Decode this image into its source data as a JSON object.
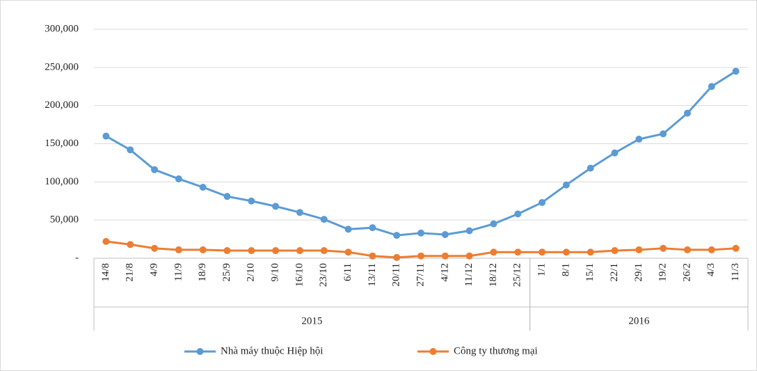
{
  "chart_data": {
    "type": "line",
    "categories": [
      "14/8",
      "21/8",
      "4/9",
      "11/9",
      "18/9",
      "25/9",
      "2/10",
      "9/10",
      "16/10",
      "23/10",
      "6/11",
      "13/11",
      "20/11",
      "27/11",
      "4/12",
      "11/12",
      "18/12",
      "25/12",
      "1/1",
      "8/1",
      "15/1",
      "22/1",
      "29/1",
      "19/2",
      "26/2",
      "4/3",
      "11/3"
    ],
    "x_groups": [
      {
        "label": "2015",
        "from": 0,
        "to": 17
      },
      {
        "label": "2016",
        "from": 18,
        "to": 26
      }
    ],
    "series": [
      {
        "name": "Nhà máy thuộc Hiệp hội",
        "color": "#5b9bd5",
        "values": [
          160000,
          142000,
          116000,
          104000,
          93000,
          81000,
          75000,
          68000,
          60000,
          51000,
          38000,
          40000,
          30000,
          33000,
          31000,
          36000,
          45000,
          58000,
          73000,
          96000,
          118000,
          138000,
          156000,
          163000,
          190000,
          225000,
          245000
        ]
      },
      {
        "name": "Công ty thương mại",
        "color": "#ed7d31",
        "values": [
          22000,
          18000,
          13000,
          11000,
          11000,
          10000,
          10000,
          10000,
          10000,
          10000,
          8000,
          3000,
          1000,
          3000,
          3000,
          3000,
          8000,
          8000,
          8000,
          8000,
          8000,
          10000,
          11000,
          13000,
          11000,
          11000,
          13000
        ]
      }
    ],
    "ylim": [
      0,
      300000
    ],
    "yticks": [
      {
        "value": 0,
        "label": "-"
      },
      {
        "value": 50000,
        "label": "50,000"
      },
      {
        "value": 100000,
        "label": "100,000"
      },
      {
        "value": 150000,
        "label": "150,000"
      },
      {
        "value": 200000,
        "label": "200,000"
      },
      {
        "value": 250000,
        "label": "250,000"
      },
      {
        "value": 300000,
        "label": "300,000"
      }
    ],
    "grid": true,
    "legend": "bottom"
  }
}
